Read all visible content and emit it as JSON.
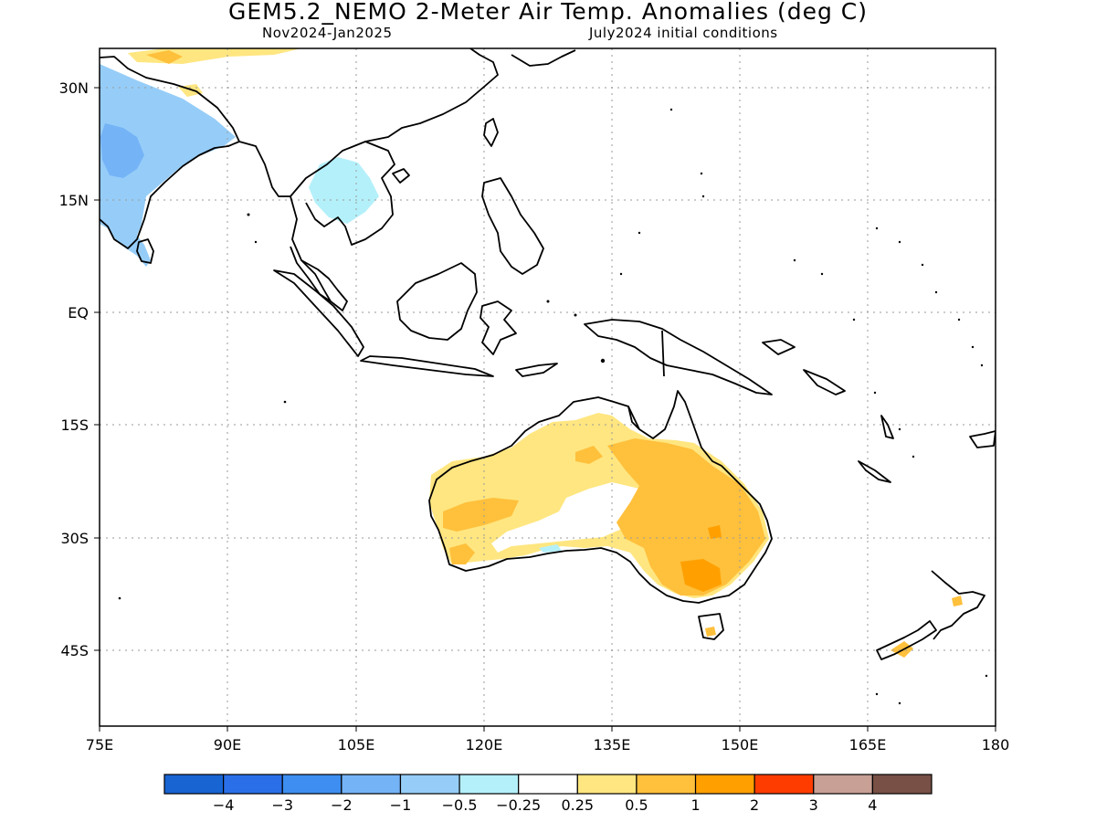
{
  "header": {
    "title": "GEM5.2_NEMO 2-Meter Air Temp. Anomalies (deg C)",
    "season": "Nov2024-Jan2025",
    "init": "July2024 initial conditions"
  },
  "axes": {
    "lon_ticks": [
      "75E",
      "90E",
      "105E",
      "120E",
      "135E",
      "150E",
      "165E",
      "180"
    ],
    "lat_ticks": [
      "30N",
      "15N",
      "EQ",
      "15S",
      "30S",
      "45S"
    ]
  },
  "colorbar": {
    "colors": [
      "#1864d2",
      "#2a6fe8",
      "#3d8ef0",
      "#75b3f7",
      "#96cdf8",
      "#b4f0fa",
      "#ffffff",
      "#ffe680",
      "#ffc03c",
      "#ffa000",
      "#ff3c00",
      "#c8a095",
      "#785046"
    ],
    "labels": [
      "-4",
      "-3",
      "-2",
      "-1",
      "-0.5",
      "-0.25",
      "0.25",
      "0.5",
      "1",
      "2",
      "3",
      "4"
    ]
  },
  "map_colors": {
    "land_outline": "#000000",
    "grid": "#9a9a9a"
  }
}
